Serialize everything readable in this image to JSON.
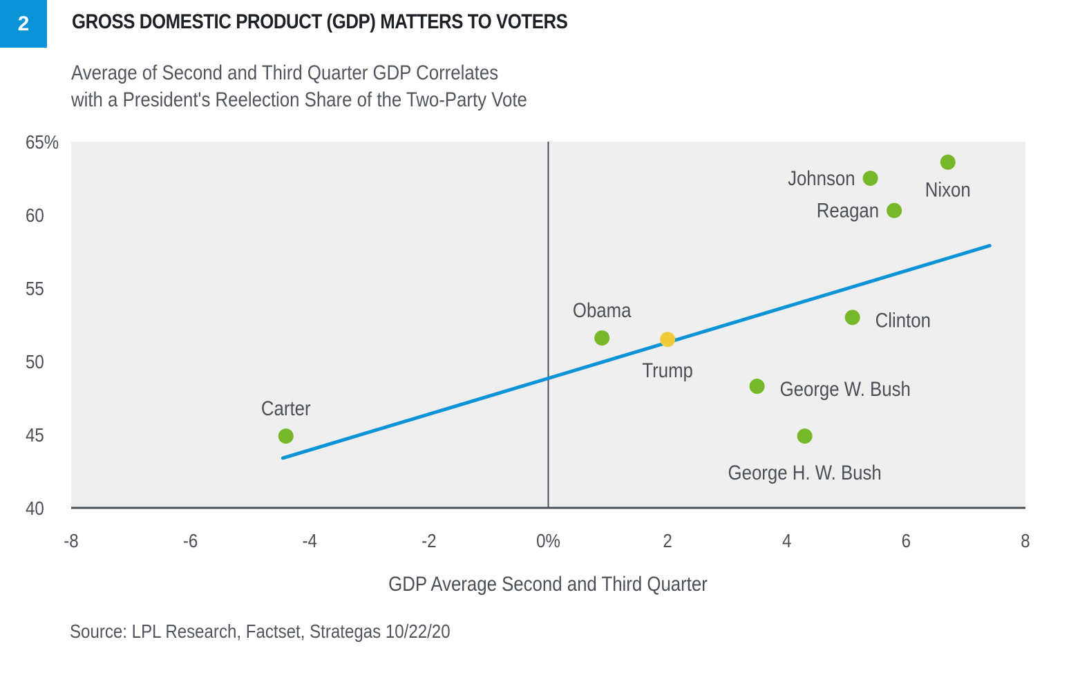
{
  "header": {
    "badge": "2",
    "title": "GROSS DOMESTIC PRODUCT (GDP) MATTERS TO VOTERS",
    "subtitle_line1": "Average of Second and Third Quarter GDP Correlates",
    "subtitle_line2": "with a President's Reelection Share of the Two-Party Vote",
    "badge_color": "#0a93d6"
  },
  "footer": {
    "source": "Source: LPL Research, Factset, Strategas  10/22/20"
  },
  "chart_data": {
    "type": "scatter",
    "title": "GROSS DOMESTIC PRODUCT (GDP) MATTERS TO VOTERS",
    "subtitle": "Average of Second and Third Quarter GDP Correlates with a President's Reelection Share of the Two-Party Vote",
    "xlabel": "GDP Average Second and Third Quarter",
    "ylabel": "",
    "xlim": [
      -8,
      8
    ],
    "ylim": [
      40,
      65
    ],
    "x_ticks": [
      -8,
      -6,
      -4,
      -2,
      0,
      2,
      4,
      6,
      8
    ],
    "x_tick_labels": [
      "-8",
      "-6",
      "-4",
      "-2",
      "0%",
      "2",
      "4",
      "6",
      "8"
    ],
    "y_ticks": [
      40,
      45,
      50,
      55,
      60,
      65
    ],
    "y_tick_labels": [
      "40",
      "45",
      "50",
      "55",
      "60",
      "65%"
    ],
    "grid": false,
    "colors": {
      "point": "#76b82a",
      "highlight": "#f2cb3a",
      "trendline": "#0a93d6",
      "plot_background": "#efefef",
      "axis": "#4a4f55"
    },
    "points": [
      {
        "label": "Nixon",
        "x": 6.7,
        "y": 63.6,
        "highlight": false,
        "label_pos": "below"
      },
      {
        "label": "Johnson",
        "x": 5.4,
        "y": 62.5,
        "highlight": false,
        "label_pos": "left"
      },
      {
        "label": "Reagan",
        "x": 5.8,
        "y": 60.3,
        "highlight": false,
        "label_pos": "left"
      },
      {
        "label": "Clinton",
        "x": 5.1,
        "y": 53.0,
        "highlight": false,
        "label_pos": "right"
      },
      {
        "label": "Obama",
        "x": 0.9,
        "y": 51.6,
        "highlight": false,
        "label_pos": "above"
      },
      {
        "label": "Trump",
        "x": 2.0,
        "y": 51.5,
        "highlight": true,
        "label_pos": "below"
      },
      {
        "label": "George W. Bush",
        "x": 3.5,
        "y": 48.3,
        "highlight": false,
        "label_pos": "right"
      },
      {
        "label": "George H. W. Bush",
        "x": 4.3,
        "y": 44.9,
        "highlight": false,
        "label_pos": "below"
      },
      {
        "label": "Carter",
        "x": -4.4,
        "y": 44.9,
        "highlight": false,
        "label_pos": "above"
      }
    ],
    "trendline": {
      "x": [
        -4.45,
        7.4
      ],
      "y": [
        43.4,
        57.9
      ]
    }
  }
}
